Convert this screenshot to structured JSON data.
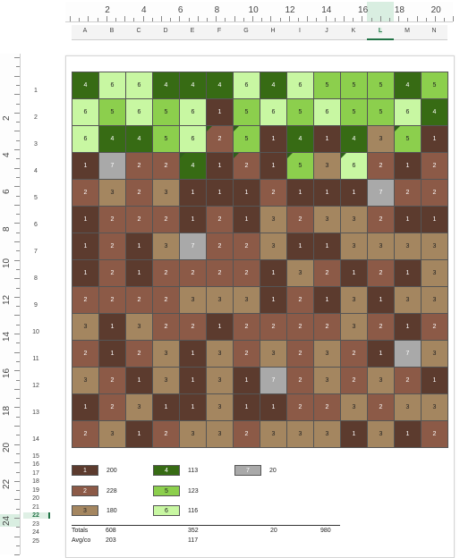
{
  "ruler_top": {
    "labels": [
      "2",
      "4",
      "6",
      "8",
      "10",
      "12",
      "14",
      "16",
      "18",
      "20"
    ]
  },
  "columns": [
    "A",
    "B",
    "C",
    "D",
    "E",
    "F",
    "G",
    "H",
    "I",
    "J",
    "K",
    "L",
    "M",
    "N"
  ],
  "selected_column": "L",
  "ruler_left": {
    "labels": [
      "2",
      "4",
      "6",
      "8",
      "10",
      "12",
      "14",
      "16",
      "18",
      "20",
      "22",
      "24"
    ]
  },
  "rows": [
    "1",
    "2",
    "3",
    "4",
    "5",
    "6",
    "7",
    "8",
    "9",
    "10",
    "11",
    "12",
    "13",
    "14",
    "15",
    "16",
    "17",
    "18",
    "19",
    "20",
    "21",
    "22",
    "23",
    "24",
    "25"
  ],
  "selected_row": "22",
  "colors": {
    "1": "#5c3b2e",
    "2": "#8c5a47",
    "3": "#a48660",
    "4": "#376b14",
    "5": "#8ccf4d",
    "6": "#c8f7a2",
    "7": "#a9a9a9"
  },
  "text_colors": {
    "1": "#ffffff",
    "2": "#ffffff",
    "3": "#222222",
    "4": "#ffffff",
    "5": "#222222",
    "6": "#222222",
    "7": "#ffffff"
  },
  "grid": [
    [
      "4",
      "6",
      "6",
      "4",
      "4",
      "4",
      "6",
      "4",
      "6",
      "5",
      "5",
      "5",
      "4",
      "5"
    ],
    [
      "6",
      "5",
      "6",
      "5",
      "6",
      "1",
      "5",
      "6",
      "5",
      "6",
      "5",
      "5",
      "6",
      "4"
    ],
    [
      "6",
      "4",
      "4",
      "5",
      "6",
      "2",
      "5",
      "1",
      "4",
      "1",
      "4",
      "3",
      "5",
      "1"
    ],
    [
      "1",
      "7",
      "2",
      "2",
      "4",
      "1",
      "2",
      "1",
      "5",
      "3",
      "6",
      "2",
      "1",
      "2"
    ],
    [
      "2",
      "3",
      "2",
      "3",
      "1",
      "1",
      "1",
      "2",
      "1",
      "1",
      "1",
      "7",
      "2",
      "2"
    ],
    [
      "1",
      "2",
      "2",
      "2",
      "1",
      "2",
      "1",
      "3",
      "2",
      "3",
      "3",
      "2",
      "1",
      "1"
    ],
    [
      "1",
      "2",
      "1",
      "3",
      "7",
      "2",
      "2",
      "3",
      "1",
      "1",
      "3",
      "3",
      "3",
      "3"
    ],
    [
      "1",
      "2",
      "1",
      "2",
      "2",
      "2",
      "2",
      "1",
      "3",
      "2",
      "1",
      "2",
      "1",
      "3"
    ],
    [
      "2",
      "2",
      "2",
      "2",
      "3",
      "3",
      "3",
      "1",
      "2",
      "1",
      "3",
      "1",
      "3",
      "3"
    ],
    [
      "3",
      "1",
      "3",
      "2",
      "2",
      "1",
      "2",
      "2",
      "2",
      "2",
      "3",
      "2",
      "1",
      "2"
    ],
    [
      "2",
      "1",
      "2",
      "3",
      "1",
      "3",
      "2",
      "3",
      "2",
      "3",
      "2",
      "1",
      "7",
      "3"
    ],
    [
      "3",
      "2",
      "1",
      "3",
      "1",
      "3",
      "1",
      "7",
      "2",
      "3",
      "2",
      "3",
      "2",
      "1"
    ],
    [
      "1",
      "2",
      "3",
      "1",
      "1",
      "3",
      "1",
      "1",
      "2",
      "2",
      "3",
      "2",
      "3",
      "3"
    ],
    [
      "2",
      "3",
      "1",
      "2",
      "3",
      "3",
      "2",
      "3",
      "3",
      "3",
      "1",
      "3",
      "1",
      "2"
    ]
  ],
  "triangles": [
    {
      "row": 2,
      "col": 5
    },
    {
      "row": 2,
      "col": 6
    },
    {
      "row": 3,
      "col": 4
    },
    {
      "row": 3,
      "col": 6
    },
    {
      "row": 3,
      "col": 8
    },
    {
      "row": 3,
      "col": 10
    },
    {
      "row": 2,
      "col": 12
    }
  ],
  "legend": [
    {
      "value": "1",
      "count": "200"
    },
    {
      "value": "2",
      "count": "228"
    },
    {
      "value": "3",
      "count": "180"
    },
    {
      "value": "4",
      "count": "113"
    },
    {
      "value": "5",
      "count": "123"
    },
    {
      "value": "6",
      "count": "116"
    },
    {
      "value": "7",
      "count": "20"
    }
  ],
  "totals": {
    "totals_label": "Totals",
    "avg_label": "Avg/co",
    "total_brown": "608",
    "total_green": "352",
    "total_gray": "20",
    "grand_total": "980",
    "avg_brown": "203",
    "avg_green": "117"
  }
}
